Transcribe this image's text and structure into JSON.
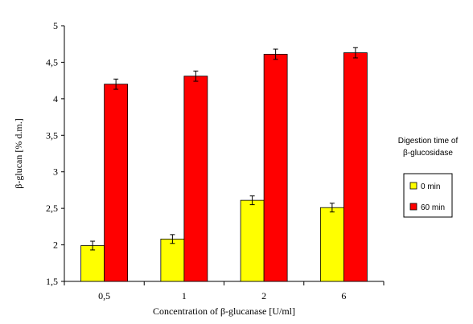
{
  "chart_data": {
    "type": "bar",
    "categories": [
      "0,5",
      "1",
      "2",
      "6"
    ],
    "series": [
      {
        "name": "0 min",
        "color": "#FFFF00",
        "values": [
          1.99,
          2.08,
          2.61,
          2.51
        ],
        "errors": [
          0.06,
          0.06,
          0.06,
          0.06
        ]
      },
      {
        "name": "60 min",
        "color": "#FF0000",
        "values": [
          4.2,
          4.31,
          4.61,
          4.63
        ],
        "errors": [
          0.07,
          0.07,
          0.07,
          0.07
        ]
      }
    ],
    "xlabel": "Concentration of β-glucanase [U/ml]",
    "ylabel": "β-glucan [% d.m.]",
    "ylim": [
      1.5,
      5
    ],
    "yticks": [
      "1,5",
      "2",
      "2,5",
      "3",
      "3,5",
      "4",
      "4,5",
      "5"
    ],
    "grid": false,
    "legend": {
      "title_lines": [
        "Digestion time of",
        "β-glucosidase"
      ],
      "placement": "right"
    }
  }
}
